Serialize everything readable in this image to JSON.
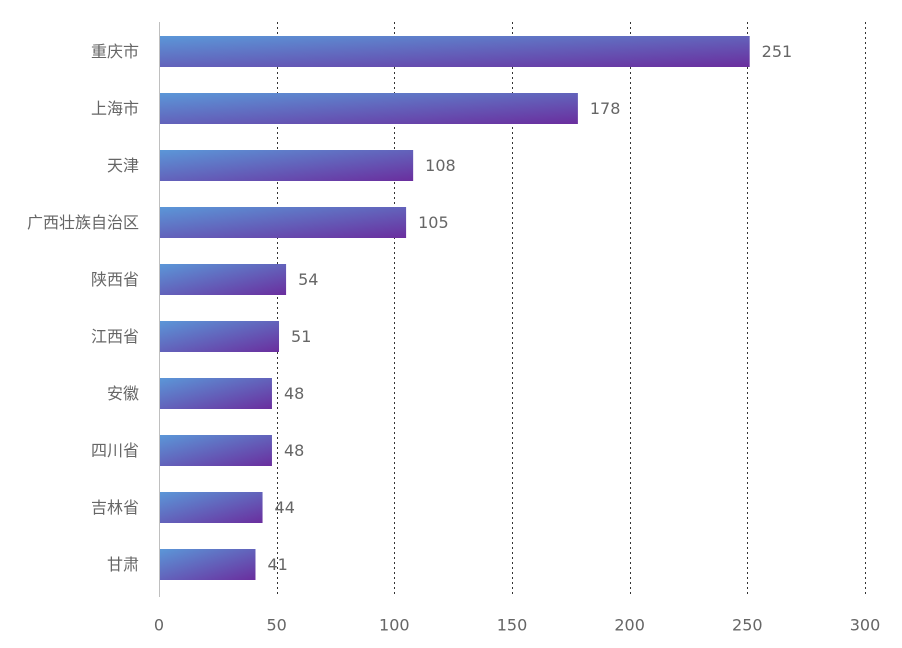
{
  "colors": {
    "bar_gradient_start": "#5b97d8",
    "bar_gradient_end": "#6a2e9e",
    "axis_line": "#bfbfbf",
    "grid_line": "#333333",
    "label_text": "#666666"
  },
  "chart_data": {
    "type": "bar",
    "orientation": "horizontal",
    "title": "",
    "xlabel": "",
    "ylabel": "",
    "categories": [
      "重庆市",
      "上海市",
      "天津",
      "广西壮族自治区",
      "陕西省",
      "江西省",
      "安徽",
      "四川省",
      "吉林省",
      "甘肃"
    ],
    "values": [
      251,
      178,
      108,
      105,
      54,
      51,
      48,
      48,
      44,
      41
    ],
    "xlim": [
      0,
      300
    ],
    "xticks": [
      "0",
      "50",
      "100",
      "150",
      "200",
      "250",
      "300"
    ],
    "xtick_values": [
      0,
      50,
      100,
      150,
      200,
      250,
      300
    ],
    "grid": "vertical dotted",
    "data_labels": true,
    "legend": "none"
  }
}
